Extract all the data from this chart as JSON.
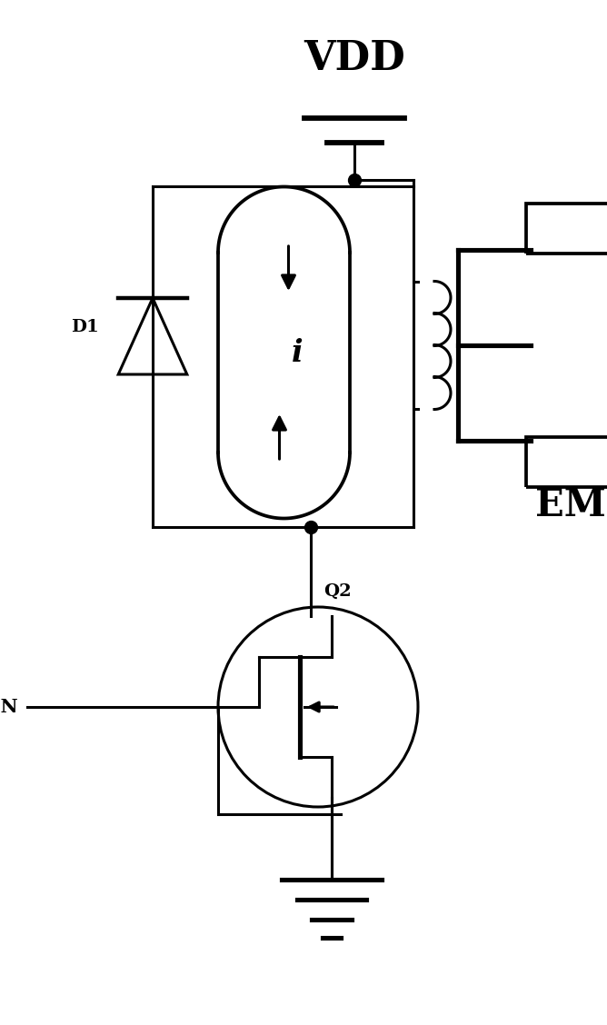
{
  "bg_color": "#ffffff",
  "lc": "#000000",
  "lw": 2.2,
  "vdd_label": "VDD",
  "emp_label": "EMP",
  "lin_label": "LIN",
  "d1_label": "D1",
  "q2_label": "Q2",
  "i_label": "i",
  "figsize": [
    6.68,
    11.28
  ],
  "dpi": 100,
  "xlim": [
    0,
    6.68
  ],
  "ylim": [
    0,
    11.28
  ]
}
